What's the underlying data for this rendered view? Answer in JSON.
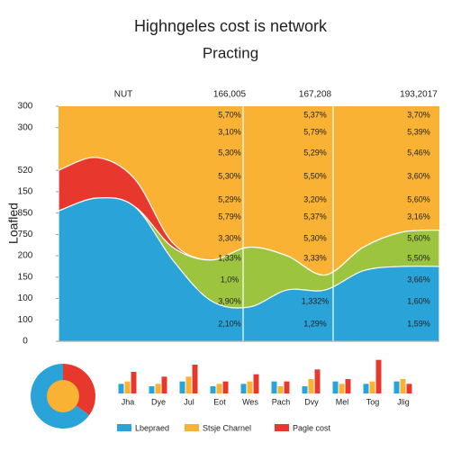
{
  "chart_data": [
    {
      "type": "area",
      "title": "Highngeles cost is network",
      "subtitle": "Practing",
      "ylabel": "Loafled",
      "x": [
        0,
        1,
        2,
        3,
        4,
        5,
        6,
        7,
        8,
        9,
        10
      ],
      "xlim": [
        0,
        10
      ],
      "ylim": [
        0,
        11
      ],
      "yticks": [
        0,
        {
          "value": 1,
          "label": "100"
        },
        {
          "value": 2,
          "label": "100"
        },
        {
          "value": 3,
          "label": "150"
        },
        {
          "value": 4,
          "label": "200"
        },
        {
          "value": 5,
          "label": "750"
        },
        {
          "value": 6,
          "label": "850"
        },
        {
          "value": 7,
          "label": "150"
        },
        {
          "value": 8,
          "label": "520"
        },
        {
          "value": 10,
          "label": "300"
        },
        {
          "value": 11,
          "label": "300"
        }
      ],
      "series": [
        {
          "color": "#f9b233",
          "values": [
            11,
            11,
            11,
            11,
            11,
            11,
            11,
            11,
            11,
            11,
            11
          ]
        },
        {
          "color": "#e8382e",
          "values": [
            8.0,
            8.6,
            7.6,
            4.6,
            3.8,
            4.4,
            4.0,
            3.1,
            4.4,
            5.1,
            5.2
          ]
        },
        {
          "color": "#9cc43f",
          "values": [
            6.1,
            6.7,
            6.3,
            4.4,
            3.8,
            4.4,
            4.0,
            3.1,
            4.4,
            5.1,
            5.2
          ]
        },
        {
          "color": "#2aa3d8",
          "values": [
            6.1,
            6.7,
            6.3,
            3.8,
            1.9,
            1.6,
            2.4,
            2.4,
            3.3,
            3.5,
            3.5
          ]
        }
      ],
      "headers": [
        "NUT",
        "166,005",
        "167,208",
        "193,2017"
      ],
      "cells": [
        [
          "5,70%",
          "3,10%",
          "5,30%",
          "5,30%",
          "5,29%",
          "5,79%",
          "3,30%",
          "1,33%",
          "1,0%",
          "3,90%",
          "2,10%"
        ],
        [
          "5,37%",
          "5,79%",
          "5,29%",
          "5,50%",
          "3,20%",
          "5,37%",
          "5,30%",
          "3,33%",
          null,
          "1,332%",
          "1,29%"
        ],
        [
          "3,70%",
          "5,39%",
          "5,46%",
          "3,60%",
          "5,60%",
          "3,16%",
          "5,60%",
          "5,50%",
          "3,66%",
          "1,60%",
          "1,59%"
        ]
      ]
    },
    {
      "type": "pie",
      "values": [
        35,
        65
      ],
      "colors": [
        "#e8382e",
        "#2aa3d8"
      ],
      "center_color": "#f9b233"
    },
    {
      "type": "bar",
      "categories": [
        "Jha",
        "Dye",
        "Jul",
        "Eot",
        "Wes",
        "Pach",
        "Dvy",
        "Mel",
        "Tog",
        "Jlig"
      ],
      "ylim": [
        0,
        30
      ],
      "series": [
        {
          "name": "Lbepraed",
          "color": "#2aa3d8",
          "values": [
            8,
            6,
            10,
            6,
            8,
            10,
            6,
            10,
            8,
            10
          ]
        },
        {
          "name": "Stsje Charnel",
          "color": "#f9b233",
          "values": [
            10,
            8,
            14,
            8,
            10,
            6,
            12,
            8,
            10,
            12
          ]
        },
        {
          "name": "Pagle cost",
          "color": "#e8382e",
          "values": [
            18,
            14,
            24,
            10,
            16,
            10,
            20,
            12,
            28,
            8
          ]
        }
      ]
    }
  ]
}
